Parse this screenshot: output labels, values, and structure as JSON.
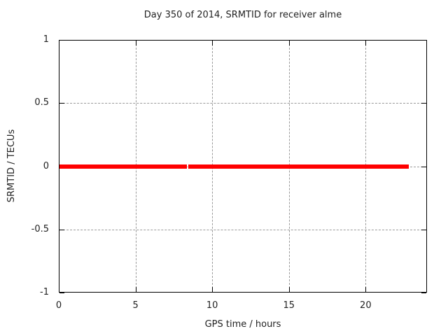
{
  "chart_data": {
    "type": "line",
    "title": "Day 350 of 2014, SRMTID for receiver alme",
    "xlabel": "GPS time / hours",
    "ylabel": "SRMTID / TECUs",
    "xlim": [
      0,
      24
    ],
    "ylim": [
      -1,
      1
    ],
    "xticks": [
      0,
      5,
      10,
      15,
      20
    ],
    "yticks": [
      -1,
      -0.5,
      0,
      0.5,
      1
    ],
    "grid": true,
    "legend": "none",
    "background_color": "#ffffff",
    "axis_color": "#000000",
    "grid_color": "#9a9a9a",
    "series": [
      {
        "name": "SRMTID",
        "color": "#ff0000",
        "style": "thick horizontal line at y=0 with small data gap near 8.4 h",
        "segments": [
          {
            "x_start": 0.0,
            "x_end": 8.35,
            "y": 0.0
          },
          {
            "x_start": 8.45,
            "x_end": 22.8,
            "y": 0.0
          }
        ]
      }
    ]
  }
}
